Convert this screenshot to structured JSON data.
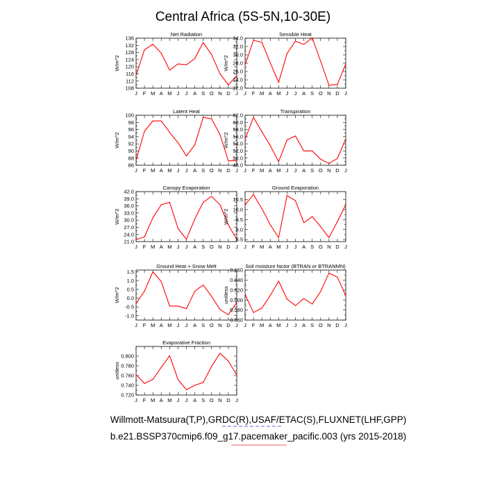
{
  "main_title": "Central Africa (5S-5N,10-30E)",
  "captions": [
    "Willmott-Matsuura(T,P),GRDC(R),USAF/ETAC(S),FLUXNET(LHF,GPP)",
    "b.e21.BSSP370cmip6.f09_g17.pacemaker_pacific.003 (yrs 2015-2018)"
  ],
  "colors": {
    "series": "#ff0000",
    "underline_blue": "#3333cc",
    "underline_red": "#ee2222"
  },
  "chart_data": [
    {
      "type": "line",
      "title": "Net Radiation",
      "ylabel": "W/m^2",
      "categories": [
        "J",
        "F",
        "M",
        "A",
        "M",
        "J",
        "J",
        "A",
        "S",
        "O",
        "N",
        "D",
        "J"
      ],
      "values": [
        115.2,
        129.5,
        132.6,
        127.6,
        118.1,
        121.6,
        121.1,
        124.6,
        133.6,
        126.8,
        116.1,
        109.8,
        115.1
      ],
      "ylim": [
        108,
        136
      ],
      "yticks": [
        "108",
        "112",
        "116",
        "120",
        "124",
        "128",
        "132",
        "136"
      ]
    },
    {
      "type": "line",
      "title": "Sensible Heat",
      "ylabel": "W/m^2",
      "categories": [
        "J",
        "F",
        "M",
        "A",
        "M",
        "J",
        "J",
        "A",
        "S",
        "O",
        "N",
        "D",
        "J"
      ],
      "values": [
        27.6,
        33.5,
        33.0,
        28.1,
        23.4,
        30.3,
        33.3,
        32.5,
        34.1,
        28.5,
        22.7,
        22.9,
        27.8
      ],
      "ylim": [
        22.0,
        34.0
      ],
      "yticks": [
        "22.0",
        "24.0",
        "26.0",
        "28.0",
        "30.0",
        "32.0",
        "34.0"
      ]
    },
    {
      "type": "line",
      "title": "Latent Heat",
      "ylabel": "W/m^2",
      "categories": [
        "J",
        "F",
        "M",
        "A",
        "M",
        "J",
        "J",
        "A",
        "S",
        "O",
        "N",
        "D",
        "J"
      ],
      "values": [
        87.4,
        95.5,
        98.4,
        98.4,
        95.2,
        92.3,
        88.6,
        91.7,
        99.4,
        99.0,
        94.6,
        87.2,
        87.4
      ],
      "ylim": [
        86,
        100
      ],
      "yticks": [
        "86",
        "88",
        "90",
        "92",
        "94",
        "96",
        "98",
        "100"
      ]
    },
    {
      "type": "line",
      "title": "Transpiration",
      "ylabel": "W/m^2",
      "categories": [
        "J",
        "F",
        "M",
        "A",
        "M",
        "J",
        "J",
        "A",
        "S",
        "O",
        "N",
        "D",
        "J"
      ],
      "values": [
        55.3,
        61.4,
        57.4,
        53.5,
        49.0,
        55.1,
        56.2,
        52.0,
        52.0,
        49.7,
        48.5,
        49.9,
        55.4
      ],
      "ylim": [
        48.0,
        62.0
      ],
      "yticks": [
        "48.0",
        "50.0",
        "52.0",
        "54.0",
        "56.0",
        "58.0",
        "60.0",
        "62.0"
      ]
    },
    {
      "type": "line",
      "title": "Canopy Evaporation",
      "ylabel": "W/m^2",
      "categories": [
        "J",
        "F",
        "M",
        "A",
        "M",
        "J",
        "J",
        "A",
        "S",
        "O",
        "N",
        "D",
        "J"
      ],
      "values": [
        21.8,
        23.0,
        31.0,
        36.5,
        37.5,
        26.5,
        22.0,
        30.5,
        37.5,
        40.0,
        36.5,
        28.0,
        21.9
      ],
      "ylim": [
        21.0,
        42.0
      ],
      "yticks": [
        "21.0",
        "24.0",
        "27.0",
        "30.0",
        "33.0",
        "36.0",
        "39.0",
        "42.0"
      ]
    },
    {
      "type": "line",
      "title": "Ground Evaporation",
      "ylabel": "W/m^2",
      "categories": [
        "J",
        "F",
        "M",
        "A",
        "M",
        "J",
        "J",
        "A",
        "S",
        "O",
        "N",
        "D",
        "J"
      ],
      "values": [
        10.25,
        10.75,
        10.05,
        9.25,
        8.6,
        10.7,
        10.45,
        9.35,
        9.65,
        9.15,
        8.6,
        9.4,
        10.25
      ],
      "ylim": [
        8.4,
        10.9
      ],
      "yticks": [
        "8.5",
        "9.0",
        "9.5",
        "10.0",
        "10.5"
      ],
      "ytick_values": [
        8.5,
        9.0,
        9.5,
        10.0,
        10.5
      ]
    },
    {
      "type": "line",
      "title": "Ground Heat + Snow Melt",
      "ylabel": "W/m^2",
      "categories": [
        "J",
        "F",
        "M",
        "A",
        "M",
        "J",
        "J",
        "A",
        "S",
        "O",
        "N",
        "D",
        "J"
      ],
      "values": [
        -0.3,
        0.4,
        1.5,
        0.95,
        -0.45,
        -0.45,
        -0.6,
        0.4,
        0.75,
        0.1,
        -0.65,
        -0.95,
        -0.25
      ],
      "ylim": [
        -1.25,
        1.6
      ],
      "yticks": [
        "-1.0",
        "-0.5",
        "0.0",
        "0.5",
        "1.0",
        "1.5"
      ],
      "ytick_values": [
        -1.0,
        -0.5,
        0.0,
        0.5,
        1.0,
        1.5
      ]
    },
    {
      "type": "line",
      "title": "Soil moisture factor (BTRAN or BTRANMN)",
      "ylabel": "unitless",
      "categories": [
        "J",
        "F",
        "M",
        "A",
        "M",
        "J",
        "J",
        "A",
        "S",
        "O",
        "N",
        "D",
        "J"
      ],
      "values": [
        0.611,
        0.575,
        0.584,
        0.609,
        0.638,
        0.602,
        0.589,
        0.603,
        0.592,
        0.617,
        0.654,
        0.646,
        0.609
      ],
      "ylim": [
        0.56,
        0.66
      ],
      "yticks": [
        "0.560",
        "0.580",
        "0.600",
        "0.620",
        "0.640",
        "0.660"
      ]
    },
    {
      "type": "line",
      "title": "Evaporative Fraction",
      "ylabel": "unitless",
      "categories": [
        "J",
        "F",
        "M",
        "A",
        "M",
        "J",
        "J",
        "A",
        "S",
        "O",
        "N",
        "D",
        "J"
      ],
      "values": [
        0.762,
        0.744,
        0.752,
        0.777,
        0.801,
        0.752,
        0.731,
        0.74,
        0.746,
        0.779,
        0.806,
        0.79,
        0.761
      ],
      "ylim": [
        0.72,
        0.82
      ],
      "yticks": [
        "0.720",
        "0.740",
        "0.760",
        "0.780",
        "0.800"
      ],
      "ytick_values": [
        0.72,
        0.74,
        0.76,
        0.78,
        0.8
      ]
    }
  ]
}
